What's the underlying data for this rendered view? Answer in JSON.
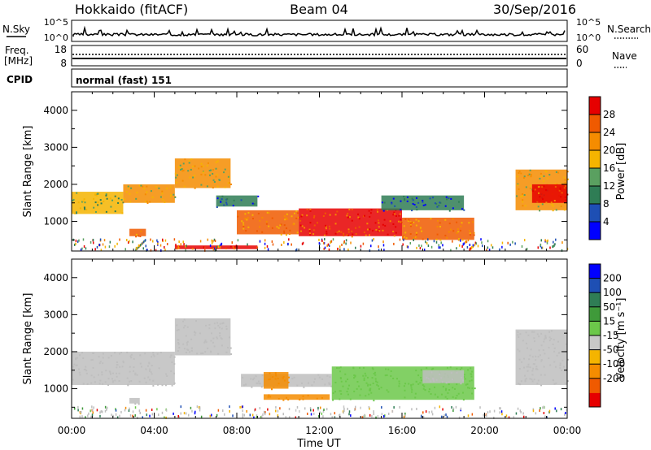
{
  "header": {
    "station": "Hokkaido (fitACF)",
    "beam": "Beam 04",
    "date": "30/Sep/2016"
  },
  "panels": {
    "nsky": {
      "left_label": "N.Sky",
      "left_ticks": [
        "10^5",
        "10^0"
      ],
      "right_ticks": [
        "10^5",
        "10^0"
      ],
      "right_label": "N.Search"
    },
    "freq": {
      "left_label_top": "Freq.",
      "left_label_unit": "[MHz]",
      "left_ticks": [
        "18",
        "8"
      ],
      "right_ticks": [
        "60",
        "0"
      ],
      "right_label": "Nave"
    },
    "cpid": {
      "label": "CPID",
      "value": "normal (fast) 151"
    }
  },
  "colors": {
    "power_scale": [
      "#0000ff",
      "#1e4fb4",
      "#2f7d55",
      "#5aa060",
      "#f5b400",
      "#f58c00",
      "#f05a00",
      "#e60000"
    ],
    "velocity_scale": [
      "#e60000",
      "#f05a00",
      "#f58c00",
      "#f5b400",
      "#c8c8c8",
      "#6cc84a",
      "#3f9a3a",
      "#2f7d55",
      "#1e4fb4",
      "#0000ff"
    ],
    "ground_scatter": "#bebebe"
  },
  "chart_data": [
    {
      "type": "heatmap",
      "name": "power",
      "ylabel": "Slant Range [km]",
      "yticks": [
        "1000",
        "2000",
        "3000",
        "4000"
      ],
      "ylim": [
        200,
        4500
      ],
      "xlim": [
        0,
        24
      ],
      "colorbar_label": "Power [dB]",
      "colorbar_ticks": [
        "4",
        "8",
        "12",
        "16",
        "20",
        "24",
        "28"
      ],
      "colorbar_range": [
        0,
        32
      ],
      "regions": [
        {
          "t0": 0.0,
          "t1": 2.5,
          "r0": 1200,
          "r1": 1800,
          "level": 18
        },
        {
          "t0": 2.5,
          "t1": 5.0,
          "r0": 1500,
          "r1": 2000,
          "level": 20
        },
        {
          "t0": 5.0,
          "t1": 7.7,
          "r0": 1900,
          "r1": 2700,
          "level": 22
        },
        {
          "t0": 7.0,
          "t1": 9.0,
          "r0": 1400,
          "r1": 1700,
          "level": 10
        },
        {
          "t0": 8.0,
          "t1": 11.0,
          "r0": 650,
          "r1": 1300,
          "level": 26
        },
        {
          "t0": 11.0,
          "t1": 16.0,
          "r0": 600,
          "r1": 1350,
          "level": 28
        },
        {
          "t0": 16.0,
          "t1": 19.5,
          "r0": 500,
          "r1": 1100,
          "level": 26
        },
        {
          "t0": 15.0,
          "t1": 19.0,
          "r0": 1300,
          "r1": 1700,
          "level": 10
        },
        {
          "t0": 21.5,
          "t1": 24.0,
          "r0": 1300,
          "r1": 2400,
          "level": 20
        },
        {
          "t0": 22.3,
          "t1": 24.0,
          "r0": 1500,
          "r1": 2000,
          "level": 28
        },
        {
          "t0": 2.8,
          "t1": 3.6,
          "r0": 600,
          "r1": 800,
          "level": 24
        },
        {
          "t0": 5.0,
          "t1": 9.0,
          "r0": 250,
          "r1": 350,
          "level": 28
        }
      ]
    },
    {
      "type": "heatmap",
      "name": "velocity",
      "ylabel": "Slant Range [km]",
      "yticks": [
        "1000",
        "2000",
        "3000",
        "4000"
      ],
      "ylim": [
        200,
        4500
      ],
      "xlim": [
        0,
        24
      ],
      "xlabel": "Time UT",
      "xticks": [
        "00:00",
        "04:00",
        "08:00",
        "12:00",
        "16:00",
        "20:00",
        "00:00"
      ],
      "colorbar_label": "Velocity [m s⁻¹]",
      "colorbar_ticks": [
        "200",
        "100",
        "50",
        "15",
        "-15",
        "-50",
        "-100",
        "-200"
      ],
      "regions": [
        {
          "t0": 0.0,
          "t1": 5.0,
          "r0": 1100,
          "r1": 2000,
          "class": "ground"
        },
        {
          "t0": 5.0,
          "t1": 7.7,
          "r0": 1900,
          "r1": 2900,
          "class": "ground"
        },
        {
          "t0": 8.2,
          "t1": 12.6,
          "r0": 1050,
          "r1": 1400,
          "class": "ground"
        },
        {
          "t0": 9.3,
          "t1": 10.5,
          "r0": 1000,
          "r1": 1450,
          "level": -40
        },
        {
          "t0": 9.3,
          "t1": 12.5,
          "r0": 700,
          "r1": 850,
          "level": -40
        },
        {
          "t0": 12.6,
          "t1": 19.5,
          "r0": 700,
          "r1": 1600,
          "level": 40
        },
        {
          "t0": 17.0,
          "t1": 19.0,
          "r0": 1150,
          "r1": 1500,
          "class": "ground"
        },
        {
          "t0": 21.5,
          "t1": 24.0,
          "r0": 1100,
          "r1": 2600,
          "class": "ground"
        },
        {
          "t0": 2.8,
          "t1": 3.3,
          "r0": 600,
          "r1": 750,
          "class": "ground"
        }
      ]
    }
  ]
}
